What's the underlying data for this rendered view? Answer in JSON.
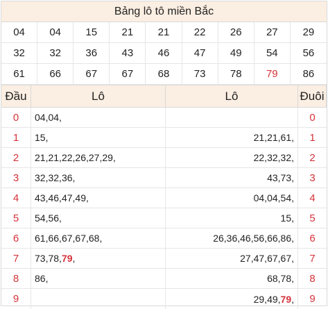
{
  "title": "Bảng lô tô miền Bắc",
  "numbers": [
    {
      "v": "04"
    },
    {
      "v": "04"
    },
    {
      "v": "15"
    },
    {
      "v": "21"
    },
    {
      "v": "21"
    },
    {
      "v": "22"
    },
    {
      "v": "26"
    },
    {
      "v": "27"
    },
    {
      "v": "29"
    },
    {
      "v": "32"
    },
    {
      "v": "32"
    },
    {
      "v": "36"
    },
    {
      "v": "43"
    },
    {
      "v": "46"
    },
    {
      "v": "47"
    },
    {
      "v": "49"
    },
    {
      "v": "54"
    },
    {
      "v": "56"
    },
    {
      "v": "61"
    },
    {
      "v": "66"
    },
    {
      "v": "67"
    },
    {
      "v": "67"
    },
    {
      "v": "68"
    },
    {
      "v": "73"
    },
    {
      "v": "78"
    },
    {
      "v": "79",
      "hl": true
    },
    {
      "v": "86"
    }
  ],
  "headers": {
    "dau": "Đầu",
    "lo_left": "Lô",
    "lo_right": "Lô",
    "duoi": "Đuôi"
  },
  "rows": [
    {
      "dau": "0",
      "left": [
        {
          "t": "04, "
        },
        {
          "t": "04,"
        }
      ],
      "right": [],
      "duoi": "0"
    },
    {
      "dau": "1",
      "left": [
        {
          "t": "15,"
        }
      ],
      "right": [
        {
          "t": "21, "
        },
        {
          "t": "21, "
        },
        {
          "t": "61,"
        }
      ],
      "duoi": "1"
    },
    {
      "dau": "2",
      "left": [
        {
          "t": "21, "
        },
        {
          "t": "21, "
        },
        {
          "t": "22, "
        },
        {
          "t": "26, "
        },
        {
          "t": "27, "
        },
        {
          "t": "29,"
        }
      ],
      "right": [
        {
          "t": "22, "
        },
        {
          "t": "32, "
        },
        {
          "t": "32,"
        }
      ],
      "duoi": "2"
    },
    {
      "dau": "3",
      "left": [
        {
          "t": "32, "
        },
        {
          "t": "32, "
        },
        {
          "t": "36,"
        }
      ],
      "right": [
        {
          "t": "43, "
        },
        {
          "t": "73,"
        }
      ],
      "duoi": "3"
    },
    {
      "dau": "4",
      "left": [
        {
          "t": "43, "
        },
        {
          "t": "46, "
        },
        {
          "t": "47, "
        },
        {
          "t": "49,"
        }
      ],
      "right": [
        {
          "t": "04, "
        },
        {
          "t": "04, "
        },
        {
          "t": "54,"
        }
      ],
      "duoi": "4"
    },
    {
      "dau": "5",
      "left": [
        {
          "t": "54, "
        },
        {
          "t": "56,"
        }
      ],
      "right": [
        {
          "t": "15,"
        }
      ],
      "duoi": "5"
    },
    {
      "dau": "6",
      "left": [
        {
          "t": "61, "
        },
        {
          "t": "66, "
        },
        {
          "t": "67, "
        },
        {
          "t": "67, "
        },
        {
          "t": "68,"
        }
      ],
      "right": [
        {
          "t": "26, "
        },
        {
          "t": "36, "
        },
        {
          "t": "46, "
        },
        {
          "t": "56, "
        },
        {
          "t": "66, "
        },
        {
          "t": "86,"
        }
      ],
      "duoi": "6"
    },
    {
      "dau": "7",
      "left": [
        {
          "t": "73, "
        },
        {
          "t": "78, "
        },
        {
          "t": "79",
          "hl": true
        },
        {
          "t": ","
        }
      ],
      "right": [
        {
          "t": "27, "
        },
        {
          "t": "47, "
        },
        {
          "t": "67, "
        },
        {
          "t": "67,"
        }
      ],
      "duoi": "7"
    },
    {
      "dau": "8",
      "left": [
        {
          "t": "86,"
        }
      ],
      "right": [
        {
          "t": "68, "
        },
        {
          "t": "78,"
        }
      ],
      "duoi": "8"
    },
    {
      "dau": "9",
      "left": [],
      "right": [
        {
          "t": "29, "
        },
        {
          "t": "49, "
        },
        {
          "t": "79",
          "hl": true
        },
        {
          "t": ","
        }
      ],
      "duoi": "9"
    }
  ]
}
